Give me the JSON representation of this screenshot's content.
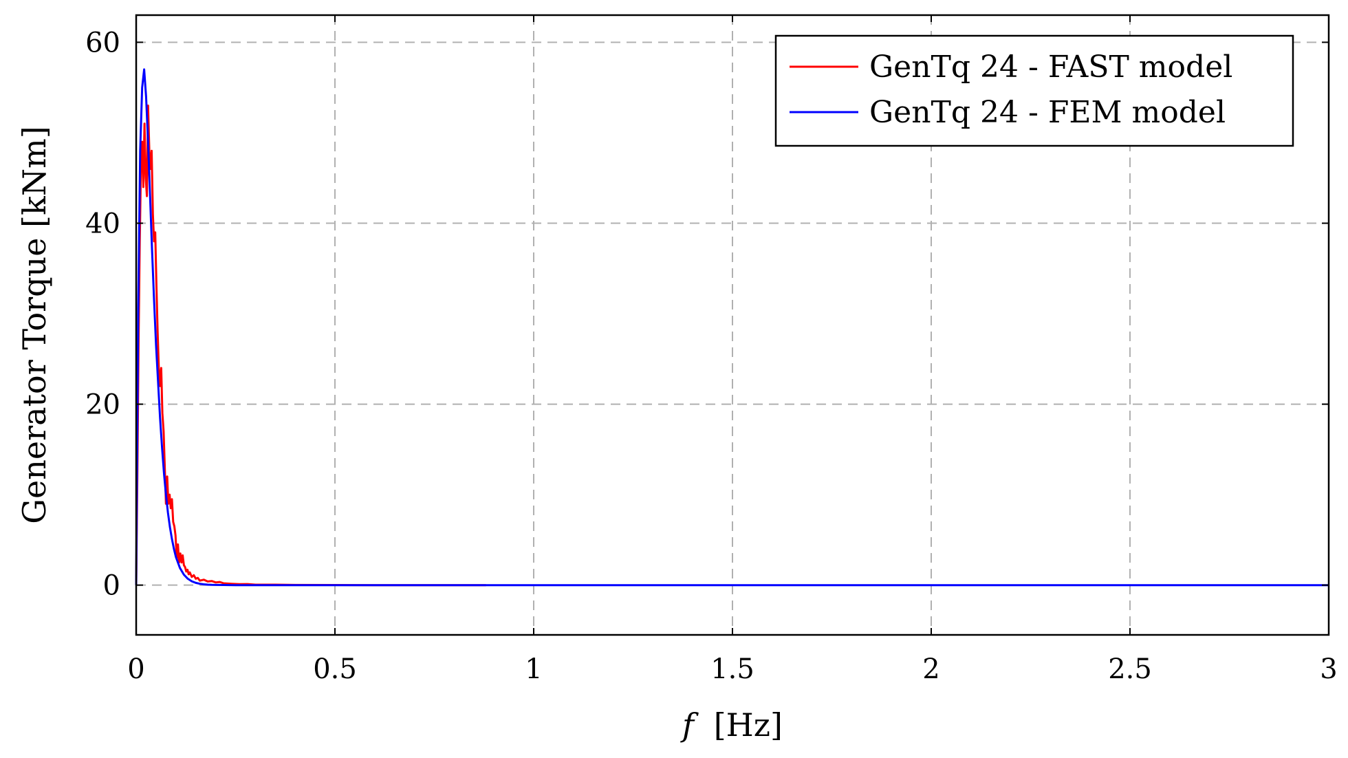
{
  "chart_data": {
    "type": "line",
    "xlabel": "f [Hz]",
    "xlabel_var": "f",
    "xlabel_unit": "[Hz]",
    "ylabel": "Generator Torque [kNm]",
    "xlim": [
      0,
      3
    ],
    "ylim": [
      -5.5,
      63
    ],
    "x_ticks": [
      0,
      0.5,
      1,
      1.5,
      2,
      2.5,
      3
    ],
    "x_tick_labels": [
      "0",
      "0.5",
      "1",
      "1.5",
      "2",
      "2.5",
      "3"
    ],
    "y_ticks": [
      0,
      20,
      40,
      60
    ],
    "y_tick_labels": [
      "0",
      "20",
      "40",
      "60"
    ],
    "grid": true,
    "legend_position": "top-right",
    "series": [
      {
        "name": "GenTq 24 - FAST model",
        "color": "#ff0000",
        "x": [
          0,
          0.003,
          0.006,
          0.009,
          0.012,
          0.015,
          0.018,
          0.021,
          0.024,
          0.027,
          0.03,
          0.033,
          0.036,
          0.039,
          0.042,
          0.045,
          0.048,
          0.051,
          0.054,
          0.057,
          0.06,
          0.063,
          0.066,
          0.069,
          0.072,
          0.075,
          0.078,
          0.081,
          0.084,
          0.087,
          0.09,
          0.093,
          0.096,
          0.099,
          0.102,
          0.105,
          0.108,
          0.111,
          0.114,
          0.117,
          0.12,
          0.123,
          0.126,
          0.129,
          0.132,
          0.135,
          0.14,
          0.145,
          0.15,
          0.155,
          0.16,
          0.17,
          0.18,
          0.19,
          0.2,
          0.21,
          0.22,
          0.24,
          0.26,
          0.28,
          0.3,
          0.35,
          0.4,
          0.5,
          0.6,
          0.7,
          0.8,
          0.88
        ],
        "y": [
          0,
          12,
          27,
          38,
          46,
          49,
          44,
          51,
          45,
          43,
          53,
          48,
          46,
          48,
          41,
          38,
          39,
          33,
          28,
          24,
          22,
          24,
          19,
          17,
          13,
          9,
          12,
          9,
          10,
          8.5,
          9.5,
          7,
          6.5,
          5.5,
          3,
          4.5,
          2.5,
          3.5,
          2.5,
          3.3,
          2.2,
          2,
          1.5,
          1.7,
          1.2,
          1.4,
          0.9,
          1.1,
          0.7,
          0.8,
          0.5,
          0.6,
          0.4,
          0.45,
          0.3,
          0.35,
          0.2,
          0.15,
          0.1,
          0.12,
          0.05,
          0.05,
          0.02,
          0.01,
          0,
          0,
          0,
          0
        ]
      },
      {
        "name": "GenTq 24 - FEM model",
        "color": "#0000ff",
        "x": [
          0,
          0.005,
          0.01,
          0.015,
          0.02,
          0.025,
          0.03,
          0.035,
          0.04,
          0.045,
          0.05,
          0.055,
          0.06,
          0.065,
          0.07,
          0.075,
          0.08,
          0.085,
          0.09,
          0.095,
          0.1,
          0.11,
          0.12,
          0.13,
          0.14,
          0.15,
          0.16,
          0.17,
          0.18,
          0.19,
          0.2,
          0.22,
          0.25,
          0.3,
          0.4,
          0.5,
          1,
          1.5,
          2,
          2.5,
          3
        ],
        "y": [
          0,
          30,
          48,
          55,
          57,
          54,
          49,
          43,
          37,
          31.5,
          26.5,
          22.5,
          18.5,
          15.2,
          12.3,
          10,
          8,
          6.4,
          5.1,
          4,
          3.1,
          1.9,
          1.15,
          0.7,
          0.42,
          0.25,
          0.15,
          0.09,
          0.05,
          0.03,
          0.02,
          0.01,
          0,
          0,
          0,
          0,
          0,
          0,
          0,
          0,
          0
        ]
      }
    ]
  }
}
